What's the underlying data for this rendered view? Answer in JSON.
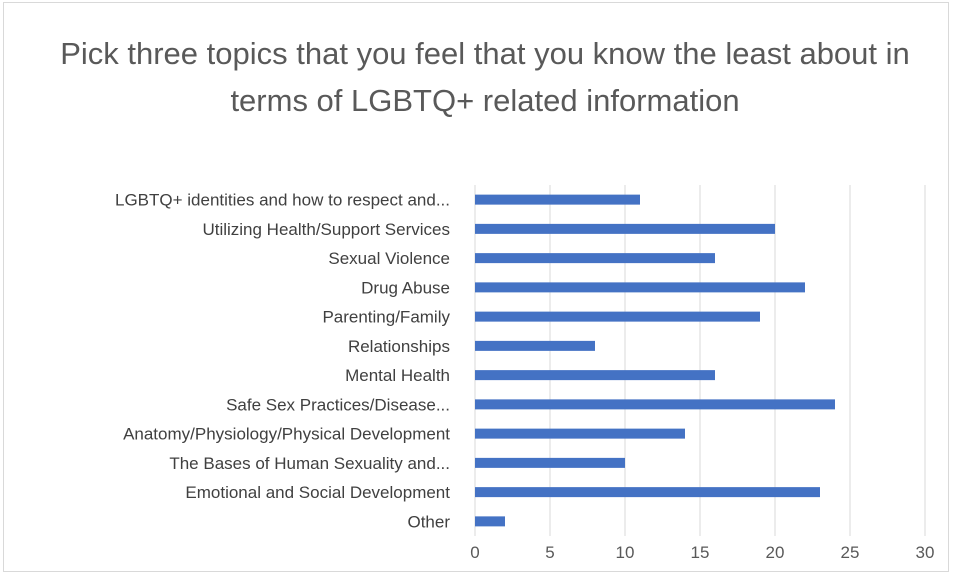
{
  "chart_data": {
    "type": "bar",
    "orientation": "horizontal",
    "title": "Pick three topics that you feel that you know the least about in terms of LGBTQ+ related information",
    "categories": [
      "LGBTQ+ identities and how to respect and...",
      "Utilizing Health/Support Services",
      "Sexual Violence",
      "Drug Abuse",
      "Parenting/Family",
      "Relationships",
      "Mental Health",
      "Safe Sex Practices/Disease...",
      "Anatomy/Physiology/Physical Development",
      "The Bases of Human Sexuality and...",
      "Emotional and Social Development",
      "Other"
    ],
    "values": [
      11,
      20,
      16,
      22,
      19,
      8,
      16,
      24,
      14,
      10,
      23,
      2
    ],
    "xlim": [
      0,
      30
    ],
    "xticks": [
      "0",
      "5",
      "10",
      "15",
      "20",
      "25",
      "30"
    ],
    "xlabel": "",
    "ylabel": "",
    "grid": true,
    "legend": "none",
    "bar_color": "#4472c4",
    "grid_color": "#d9d9d9"
  }
}
